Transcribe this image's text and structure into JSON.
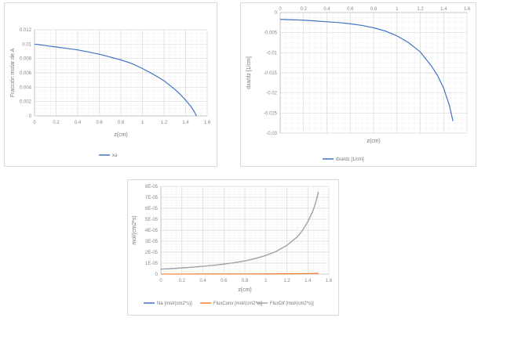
{
  "chart_data": [
    {
      "type": "line",
      "title": "",
      "xlabel": "z(cm)",
      "ylabel": "Fracción molar de A",
      "xlim": [
        0,
        1.6
      ],
      "ylim": [
        0,
        0.012
      ],
      "x_ticks": [
        0,
        0.2,
        0.4,
        0.6,
        0.8,
        1,
        1.2,
        1.4,
        1.6
      ],
      "x_tick_labels": [
        "0",
        "0.2",
        "0.4",
        "0.6",
        "0.8",
        "1",
        "1.2",
        "1.4",
        "1.6"
      ],
      "y_ticks": [
        0,
        0.002,
        0.004,
        0.006,
        0.008,
        0.01,
        0.012
      ],
      "y_tick_labels": [
        "0",
        "0.002",
        "0.004",
        "0.006",
        "0.008",
        "0.01",
        "0.012"
      ],
      "legend_position": "bottom",
      "series": [
        {
          "name": "xa",
          "color": "#4472c4",
          "x": [
            0,
            0.1,
            0.2,
            0.3,
            0.4,
            0.5,
            0.6,
            0.7,
            0.8,
            0.9,
            1.0,
            1.1,
            1.2,
            1.3,
            1.35,
            1.4,
            1.45,
            1.48,
            1.5
          ],
          "y": [
            0.01,
            0.0098,
            0.0096,
            0.0094,
            0.0092,
            0.0089,
            0.0086,
            0.0082,
            0.0078,
            0.0073,
            0.0066,
            0.0058,
            0.0049,
            0.0037,
            0.003,
            0.0022,
            0.0013,
            0.0006,
            0.0
          ]
        }
      ]
    },
    {
      "type": "line",
      "title": "",
      "xlabel": "z(cm)",
      "ylabel": "dxa/dz [1/cm]",
      "xlim": [
        0,
        1.6
      ],
      "ylim": [
        -0.03,
        0
      ],
      "x_axis_position": "top",
      "x_ticks": [
        0,
        0.2,
        0.4,
        0.6,
        0.8,
        1,
        1.2,
        1.4,
        1.6
      ],
      "x_tick_labels": [
        "0",
        "0.2",
        "0.4",
        "0.6",
        "0.8",
        "1",
        "1.2",
        "1.4",
        "1.6"
      ],
      "y_ticks": [
        0,
        -0.005,
        -0.01,
        -0.015,
        -0.02,
        -0.025,
        -0.03
      ],
      "y_tick_labels": [
        "0",
        "-0.005",
        "-0.01",
        "-0.015",
        "-0.02",
        "-0.025",
        "-0.03"
      ],
      "legend_position": "bottom",
      "series": [
        {
          "name": "dxa/dz [1/cm]",
          "color": "#4472c4",
          "x": [
            0,
            0.1,
            0.2,
            0.3,
            0.4,
            0.5,
            0.6,
            0.7,
            0.8,
            0.9,
            1.0,
            1.1,
            1.2,
            1.3,
            1.35,
            1.4,
            1.45,
            1.48
          ],
          "y": [
            -0.0017,
            -0.0018,
            -0.0019,
            -0.0021,
            -0.0023,
            -0.0025,
            -0.0028,
            -0.0032,
            -0.0038,
            -0.0046,
            -0.0058,
            -0.0075,
            -0.0098,
            -0.0135,
            -0.0158,
            -0.0188,
            -0.0232,
            -0.027
          ]
        }
      ]
    },
    {
      "type": "line",
      "title": "",
      "xlabel": "z(cm)",
      "ylabel": "mol/(cm2*s)",
      "xlim": [
        0,
        1.6
      ],
      "ylim": [
        0,
        8e-05
      ],
      "x_ticks": [
        0,
        0.2,
        0.4,
        0.6,
        0.8,
        1,
        1.2,
        1.4,
        1.6
      ],
      "x_tick_labels": [
        "0",
        "0.2",
        "0.4",
        "0.6",
        "0.8",
        "1",
        "1.2",
        "1.4",
        "1.6"
      ],
      "y_ticks": [
        0,
        1e-05,
        2e-05,
        3e-05,
        4e-05,
        5e-05,
        6e-05,
        7e-05,
        8e-05
      ],
      "y_tick_labels": [
        "0",
        "1E-05",
        "2E-05",
        "3E-05",
        "4E-05",
        "5E-05",
        "6E-05",
        "7E-05",
        "8E-05"
      ],
      "legend_position": "bottom",
      "series": [
        {
          "name": "Na [mol/(cm2*s)]",
          "color": "#4472c4",
          "x": [
            0,
            0.1,
            0.2,
            0.3,
            0.4,
            0.5,
            0.6,
            0.7,
            0.8,
            0.9,
            1.0,
            1.1,
            1.2,
            1.3,
            1.35,
            1.4,
            1.45,
            1.48,
            1.5
          ],
          "y": [
            4.5e-06,
            5e-06,
            5.6e-06,
            6.3e-06,
            7.1e-06,
            8e-06,
            9.1e-06,
            1.04e-05,
            1.2e-05,
            1.42e-05,
            1.7e-05,
            2.08e-05,
            2.62e-05,
            3.4e-05,
            4e-05,
            4.78e-05,
            5.8e-05,
            6.7e-05,
            7.5e-05
          ]
        },
        {
          "name": "FluxConv [mol/(cm2*s)]",
          "color": "#ed7d31",
          "x": [
            0,
            0.2,
            0.4,
            0.6,
            0.8,
            1.0,
            1.2,
            1.4,
            1.5
          ],
          "y": [
            4e-08,
            5e-08,
            7e-08,
            9e-08,
            1.2e-07,
            1.7e-07,
            2.6e-07,
            4.6e-07,
            7e-07
          ]
        },
        {
          "name": "FluxDif [mol/(cm2*s)]",
          "color": "#a5a5a5",
          "x": [
            0,
            0.1,
            0.2,
            0.3,
            0.4,
            0.5,
            0.6,
            0.7,
            0.8,
            0.9,
            1.0,
            1.1,
            1.2,
            1.3,
            1.35,
            1.4,
            1.45,
            1.48,
            1.5
          ],
          "y": [
            4.5e-06,
            5e-06,
            5.6e-06,
            6.3e-06,
            7.1e-06,
            8e-06,
            9.1e-06,
            1.04e-05,
            1.2e-05,
            1.42e-05,
            1.7e-05,
            2.08e-05,
            2.62e-05,
            3.4e-05,
            4e-05,
            4.78e-05,
            5.8e-05,
            6.7e-05,
            7.5e-05
          ]
        }
      ]
    }
  ]
}
